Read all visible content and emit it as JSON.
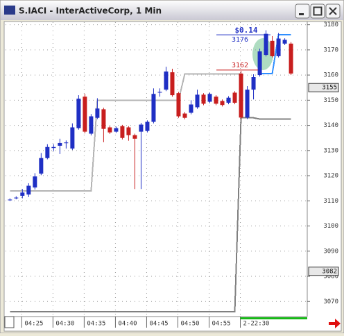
{
  "window": {
    "title": "S.IACI - InterActiveCorp, 1 Min"
  },
  "chart_data": {
    "type": "candlestick",
    "open": [
      3110.5,
      3111,
      3112,
      3112.5,
      3115.3,
      3120.8,
      3127,
      3131,
      3131.9,
      3133,
      3130.8,
      3138.9,
      3151.4,
      3136.7,
      3143,
      3146.4,
      3139.2,
      3137.5,
      3139.7,
      3139.2,
      3136.1,
      3137.5,
      3137.8,
      3141.4,
      3153,
      3154.2,
      3161.1,
      3152.8,
      3144.7,
      3145,
      3147.2,
      3152.2,
      3149.4,
      3151.4,
      3149.7,
      3149,
      3153,
      3160.6,
      3143.1,
      3154.2,
      3160,
      3168,
      3173.6,
      3167.5,
      3172.5,
      3172.5
    ],
    "high": [
      3111,
      3111.8,
      3114.7,
      3117,
      3121,
      3129,
      3132.5,
      3132.5,
      3134.7,
      3134,
      3140.8,
      3152,
      3152.5,
      3144.5,
      3150.8,
      3147,
      3139.8,
      3139.5,
      3140.2,
      3139.7,
      3136.7,
      3141,
      3142,
      3154.7,
      3154.7,
      3163.3,
      3162.5,
      3153.3,
      3145.3,
      3150,
      3154.2,
      3152.8,
      3153.1,
      3152,
      3150.3,
      3151.6,
      3153.6,
      3161.7,
      3155.6,
      3160.3,
      3170.5,
      3177.8,
      3175.5,
      3176.7,
      3174.6,
      3173.1
    ],
    "low": [
      3110,
      3110.6,
      3111,
      3111.5,
      3114.5,
      3120.2,
      3126.5,
      3129.8,
      3128.6,
      3130.8,
      3130.2,
      3138.3,
      3136.8,
      3136,
      3142.5,
      3133.3,
      3136.6,
      3137,
      3134.4,
      3133.9,
      3114.7,
      3114.7,
      3137.2,
      3140.8,
      3151.4,
      3153.6,
      3151.4,
      3143,
      3142.4,
      3144.4,
      3146.6,
      3148,
      3148.8,
      3148,
      3147.5,
      3148.4,
      3148.4,
      3142.5,
      3142.5,
      3150.3,
      3159.4,
      3167.4,
      3167,
      3167,
      3171.9,
      3160
    ],
    "close": [
      3110.5,
      3111.3,
      3113.3,
      3116,
      3119.7,
      3127,
      3131.4,
      3131.4,
      3133,
      3133.2,
      3139.2,
      3150.6,
      3137.5,
      3143.6,
      3146.7,
      3138.6,
      3137.2,
      3138.9,
      3135,
      3136.1,
      3134.7,
      3140.3,
      3141.4,
      3152.5,
      3153.3,
      3161.4,
      3152,
      3143.6,
      3143,
      3148.3,
      3152.2,
      3148.6,
      3152.5,
      3148.6,
      3148.1,
      3151,
      3149,
      3143.1,
      3154.2,
      3159.2,
      3169.4,
      3176.4,
      3167.5,
      3174.5,
      3174,
      3160.6
    ],
    "up_color": "#1f2fc4",
    "down_color": "#c81e1e",
    "lines": [
      {
        "color": "#b4b4b4",
        "values": [
          3114,
          3114,
          3114,
          3114,
          3114,
          3114,
          3114,
          3114,
          3114,
          3114,
          3114,
          3114,
          3114,
          3114,
          3150,
          3150,
          3150,
          3150,
          3150,
          3150,
          3150,
          3150,
          3150,
          3150,
          3150,
          3150,
          3150,
          3150,
          3160.5,
          3160.5,
          3160.5,
          3160.5,
          3160.5,
          3160.5,
          3160.5,
          3160.5,
          3160.5,
          3160.5,
          null,
          null,
          null,
          null,
          null,
          null,
          null,
          null
        ]
      },
      {
        "color": "#808080",
        "values": [
          3066,
          3066,
          3066,
          3066,
          3066,
          3066,
          3066,
          3066,
          3066,
          3066,
          3066,
          3066,
          3066,
          3066,
          3066,
          3066,
          3066,
          3066,
          3066,
          3066,
          3066,
          3066,
          3066,
          3066,
          3066,
          3066,
          3066,
          3066,
          3066,
          3066,
          3066,
          3066,
          3066,
          3066,
          3066,
          3066,
          3066,
          3143,
          3143,
          3143,
          3142.5,
          3142.5,
          3142.5,
          3142.5,
          3142.5,
          3142.5
        ]
      },
      {
        "color": "#2f8fff",
        "values": [
          null,
          null,
          null,
          null,
          null,
          null,
          null,
          null,
          null,
          null,
          null,
          null,
          null,
          null,
          null,
          null,
          null,
          null,
          null,
          null,
          null,
          null,
          null,
          null,
          null,
          null,
          null,
          null,
          null,
          null,
          null,
          null,
          null,
          null,
          null,
          null,
          null,
          null,
          null,
          null,
          3160.6,
          3160.6,
          3160.6,
          3176,
          3176,
          3176
        ]
      }
    ],
    "levels": [
      {
        "label": "3176",
        "value": 3176,
        "color": "#1f2fc4"
      },
      {
        "label": "3162",
        "value": 3162,
        "color": "#c81e1e"
      }
    ],
    "annotation": "$0.14",
    "price_markers": [
      {
        "value": 3155,
        "label": "3155"
      },
      {
        "value": 3082,
        "label": "3082"
      }
    ],
    "xlim": [
      -0.7,
      47.6
    ],
    "xticks": [
      {
        "value": 2,
        "label": "04:25"
      },
      {
        "value": 7,
        "label": "04:30"
      },
      {
        "value": 12,
        "label": "04:35"
      },
      {
        "value": 17,
        "label": "04:40"
      },
      {
        "value": 22,
        "label": "04:45"
      },
      {
        "value": 27,
        "label": "04:50"
      },
      {
        "value": 32,
        "label": "04:55"
      },
      {
        "value": 37,
        "label": "2-22:30"
      }
    ],
    "ylim": [
      3064,
      3181
    ],
    "yticks": [
      3070,
      3080,
      3090,
      3100,
      3110,
      3120,
      3130,
      3140,
      3150,
      3160,
      3170,
      3180
    ],
    "grid": true
  }
}
